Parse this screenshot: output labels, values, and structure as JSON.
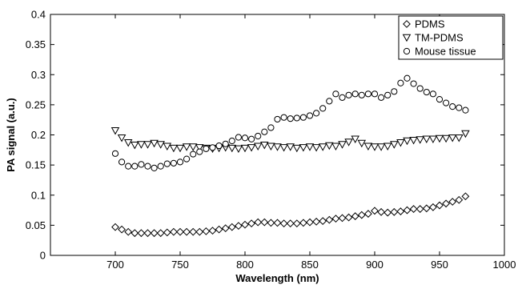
{
  "colors": {
    "background": "#ffffff",
    "axis": "#000000",
    "marker_stroke": "#000000",
    "marker_fill": "#ffffff"
  },
  "chart_data": {
    "type": "scatter",
    "title": "",
    "xlabel": "Wavelength (nm)",
    "ylabel": "PA signal (a.u.)",
    "xlim": [
      650,
      1000
    ],
    "ylim": [
      0,
      0.4
    ],
    "xticks": [
      700,
      750,
      800,
      850,
      900,
      950,
      1000
    ],
    "yticks": [
      0,
      0.05,
      0.1,
      0.15,
      0.2,
      0.25,
      0.3,
      0.35,
      0.4
    ],
    "xtick_labels": [
      "700",
      "750",
      "800",
      "850",
      "900",
      "950",
      "1000"
    ],
    "ytick_labels": [
      "0",
      "0.05",
      "0.1",
      "0.15",
      "0.2",
      "0.25",
      "0.3",
      "0.35",
      "0.4"
    ],
    "grid": false,
    "legend_position": "top-right",
    "x": [
      700,
      705,
      710,
      715,
      720,
      725,
      730,
      735,
      740,
      745,
      750,
      755,
      760,
      765,
      770,
      775,
      780,
      785,
      790,
      795,
      800,
      805,
      810,
      815,
      820,
      825,
      830,
      835,
      840,
      845,
      850,
      855,
      860,
      865,
      870,
      875,
      880,
      885,
      890,
      895,
      900,
      905,
      910,
      915,
      920,
      925,
      930,
      935,
      940,
      945,
      950,
      955,
      960,
      965,
      970
    ],
    "series": [
      {
        "name": "PDMS",
        "marker": "diamond",
        "values": [
          0.047,
          0.043,
          0.039,
          0.037,
          0.037,
          0.037,
          0.037,
          0.037,
          0.038,
          0.039,
          0.039,
          0.039,
          0.039,
          0.039,
          0.04,
          0.041,
          0.043,
          0.045,
          0.047,
          0.049,
          0.051,
          0.053,
          0.055,
          0.055,
          0.054,
          0.054,
          0.053,
          0.053,
          0.053,
          0.054,
          0.055,
          0.056,
          0.057,
          0.059,
          0.061,
          0.062,
          0.063,
          0.065,
          0.067,
          0.069,
          0.074,
          0.072,
          0.071,
          0.072,
          0.073,
          0.075,
          0.077,
          0.077,
          0.078,
          0.08,
          0.083,
          0.086,
          0.089,
          0.092,
          0.098
        ]
      },
      {
        "name": "TM-PDMS",
        "marker": "triangle-down",
        "values": [
          0.207,
          0.195,
          0.187,
          0.183,
          0.184,
          0.184,
          0.186,
          0.184,
          0.181,
          0.178,
          0.178,
          0.18,
          0.18,
          0.179,
          0.178,
          0.177,
          0.178,
          0.179,
          0.178,
          0.177,
          0.178,
          0.179,
          0.181,
          0.183,
          0.181,
          0.18,
          0.179,
          0.18,
          0.178,
          0.179,
          0.18,
          0.179,
          0.18,
          0.182,
          0.181,
          0.184,
          0.188,
          0.193,
          0.186,
          0.181,
          0.18,
          0.18,
          0.181,
          0.184,
          0.187,
          0.19,
          0.191,
          0.192,
          0.193,
          0.193,
          0.194,
          0.194,
          0.195,
          0.195,
          0.202
        ]
      },
      {
        "name": "Mouse tissue",
        "marker": "circle",
        "values": [
          0.169,
          0.155,
          0.148,
          0.148,
          0.151,
          0.148,
          0.145,
          0.148,
          0.152,
          0.153,
          0.155,
          0.16,
          0.168,
          0.172,
          0.177,
          0.179,
          0.182,
          0.185,
          0.19,
          0.196,
          0.195,
          0.193,
          0.198,
          0.205,
          0.212,
          0.226,
          0.229,
          0.227,
          0.228,
          0.229,
          0.232,
          0.236,
          0.244,
          0.256,
          0.268,
          0.262,
          0.266,
          0.268,
          0.266,
          0.268,
          0.268,
          0.262,
          0.266,
          0.272,
          0.286,
          0.294,
          0.285,
          0.277,
          0.271,
          0.268,
          0.259,
          0.253,
          0.247,
          0.245,
          0.241
        ]
      }
    ]
  }
}
